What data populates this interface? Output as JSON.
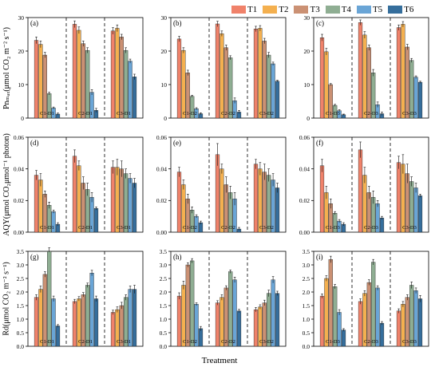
{
  "legend": {
    "labels": [
      "T1",
      "T2",
      "T3",
      "T4",
      "T5",
      "T6"
    ],
    "colors": [
      "#f0826a",
      "#f4b04f",
      "#cb9174",
      "#8fae93",
      "#6aa5d6",
      "#356e9c"
    ]
  },
  "row_labels": [
    "Pnₘₐₓ(μmol CO₂ m⁻² s⁻¹)",
    "AQY(μmol CO₂μmol⁻¹ photon)",
    "Rd(μmol CO₂ m⁻² s⁻¹)"
  ],
  "x_title": "Treatment",
  "chart_data": [
    {
      "type": "bar",
      "panel": "(a)",
      "categories": [
        "C1-D1",
        "C2-D1",
        "C3-D1"
      ],
      "ylim": [
        0,
        30
      ],
      "yticks": [
        0,
        10,
        20,
        30
      ],
      "series": [
        {
          "name": "T1",
          "values": [
            23.2,
            28.0,
            26.0
          ],
          "errors": [
            1.0,
            1.0,
            1.0
          ]
        },
        {
          "name": "T2",
          "values": [
            22.0,
            26.2,
            26.8
          ],
          "errors": [
            1.0,
            1.0,
            1.0
          ]
        },
        {
          "name": "T3",
          "values": [
            18.8,
            22.2,
            24.2
          ],
          "errors": [
            0.8,
            0.8,
            0.8
          ]
        },
        {
          "name": "T4",
          "values": [
            7.3,
            20.2,
            20.2
          ],
          "errors": [
            0.4,
            0.8,
            0.8
          ]
        },
        {
          "name": "T5",
          "values": [
            3.0,
            7.7,
            17.0
          ],
          "errors": [
            0.3,
            0.8,
            0.6
          ]
        },
        {
          "name": "T6",
          "values": [
            1.2,
            2.3,
            12.3
          ],
          "errors": [
            0.3,
            0.6,
            0.8
          ]
        }
      ]
    },
    {
      "type": "bar",
      "panel": "(b)",
      "categories": [
        "C1-D2",
        "C2-D2",
        "C3-D2"
      ],
      "ylim": [
        0,
        30
      ],
      "yticks": [
        0,
        10,
        20,
        30
      ],
      "series": [
        {
          "name": "T1",
          "values": [
            23.6,
            28.1,
            26.6
          ],
          "errors": [
            0.8,
            0.8,
            0.8
          ]
        },
        {
          "name": "T2",
          "values": [
            20.2,
            25.2,
            26.8
          ],
          "errors": [
            0.8,
            0.8,
            0.8
          ]
        },
        {
          "name": "T3",
          "values": [
            13.5,
            21.0,
            23.0
          ],
          "errors": [
            0.8,
            0.8,
            0.8
          ]
        },
        {
          "name": "T4",
          "values": [
            6.5,
            18.0,
            18.8
          ],
          "errors": [
            0.3,
            0.6,
            0.8
          ]
        },
        {
          "name": "T5",
          "values": [
            2.8,
            5.2,
            16.2
          ],
          "errors": [
            0.3,
            0.8,
            0.5
          ]
        },
        {
          "name": "T6",
          "values": [
            1.3,
            1.8,
            11.0
          ],
          "errors": [
            0.3,
            0.5,
            0.3
          ]
        }
      ]
    },
    {
      "type": "bar",
      "panel": "(c)",
      "categories": [
        "C1-D3",
        "C2-D3",
        "C3-D3"
      ],
      "ylim": [
        0,
        30
      ],
      "yticks": [
        0,
        10,
        20,
        30
      ],
      "series": [
        {
          "name": "T1",
          "values": [
            24.0,
            28.5,
            27.0
          ],
          "errors": [
            1.0,
            0.8,
            0.8
          ]
        },
        {
          "name": "T2",
          "values": [
            19.8,
            24.8,
            28.0
          ],
          "errors": [
            1.0,
            1.0,
            0.8
          ]
        },
        {
          "name": "T3",
          "values": [
            10.0,
            21.0,
            21.2
          ],
          "errors": [
            0.3,
            0.8,
            0.8
          ]
        },
        {
          "name": "T4",
          "values": [
            3.8,
            13.5,
            17.2
          ],
          "errors": [
            0.3,
            1.0,
            0.6
          ]
        },
        {
          "name": "T5",
          "values": [
            2.2,
            4.0,
            12.2
          ],
          "errors": [
            0.3,
            0.8,
            0.4
          ]
        },
        {
          "name": "T6",
          "values": [
            1.0,
            1.3,
            10.7
          ],
          "errors": [
            0.2,
            0.5,
            0.3
          ]
        }
      ]
    },
    {
      "type": "bar",
      "panel": "(d)",
      "categories": [
        "C1-D1",
        "C2-D1",
        "C3-D1"
      ],
      "ylim": [
        0,
        0.06
      ],
      "yticks": [
        0.0,
        0.02,
        0.04,
        0.06
      ],
      "series": [
        {
          "name": "T1",
          "values": [
            0.036,
            0.048,
            0.041
          ],
          "errors": [
            0.003,
            0.004,
            0.004
          ]
        },
        {
          "name": "T2",
          "values": [
            0.033,
            0.042,
            0.041
          ],
          "errors": [
            0.004,
            0.003,
            0.005
          ]
        },
        {
          "name": "T3",
          "values": [
            0.024,
            0.031,
            0.04
          ],
          "errors": [
            0.002,
            0.004,
            0.005
          ]
        },
        {
          "name": "T4",
          "values": [
            0.017,
            0.027,
            0.037
          ],
          "errors": [
            0.002,
            0.004,
            0.003
          ]
        },
        {
          "name": "T5",
          "values": [
            0.013,
            0.022,
            0.034
          ],
          "errors": [
            0.001,
            0.003,
            0.003
          ]
        },
        {
          "name": "T6",
          "values": [
            0.005,
            0.015,
            0.031
          ],
          "errors": [
            0.001,
            0.001,
            0.003
          ]
        }
      ]
    },
    {
      "type": "bar",
      "panel": "(e)",
      "categories": [
        "C1-D2",
        "C2-D2",
        "C3-D2"
      ],
      "ylim": [
        0,
        0.06
      ],
      "yticks": [
        0.0,
        0.02,
        0.04,
        0.06
      ],
      "series": [
        {
          "name": "T1",
          "values": [
            0.038,
            0.049,
            0.043
          ],
          "errors": [
            0.003,
            0.007,
            0.003
          ]
        },
        {
          "name": "T2",
          "values": [
            0.03,
            0.04,
            0.04
          ],
          "errors": [
            0.003,
            0.003,
            0.004
          ]
        },
        {
          "name": "T3",
          "values": [
            0.021,
            0.03,
            0.038
          ],
          "errors": [
            0.003,
            0.005,
            0.005
          ]
        },
        {
          "name": "T4",
          "values": [
            0.014,
            0.025,
            0.036
          ],
          "errors": [
            0.002,
            0.004,
            0.004
          ]
        },
        {
          "name": "T5",
          "values": [
            0.01,
            0.021,
            0.033
          ],
          "errors": [
            0.001,
            0.004,
            0.004
          ]
        },
        {
          "name": "T6",
          "values": [
            0.006,
            0.002,
            0.028
          ],
          "errors": [
            0.001,
            0.001,
            0.003
          ]
        }
      ]
    },
    {
      "type": "bar",
      "panel": "(f)",
      "categories": [
        "C1-D3",
        "C2-D3",
        "C3-D3"
      ],
      "ylim": [
        0,
        0.06
      ],
      "yticks": [
        0.0,
        0.02,
        0.04,
        0.06
      ],
      "series": [
        {
          "name": "T1",
          "values": [
            0.042,
            0.052,
            0.044
          ],
          "errors": [
            0.004,
            0.005,
            0.004
          ]
        },
        {
          "name": "T2",
          "values": [
            0.025,
            0.036,
            0.043
          ],
          "errors": [
            0.004,
            0.005,
            0.006
          ]
        },
        {
          "name": "T3",
          "values": [
            0.018,
            0.025,
            0.037
          ],
          "errors": [
            0.003,
            0.004,
            0.006
          ]
        },
        {
          "name": "T4",
          "values": [
            0.012,
            0.022,
            0.032
          ],
          "errors": [
            0.001,
            0.004,
            0.003
          ]
        },
        {
          "name": "T5",
          "values": [
            0.007,
            0.018,
            0.028
          ],
          "errors": [
            0.001,
            0.002,
            0.003
          ]
        },
        {
          "name": "T6",
          "values": [
            0.005,
            0.009,
            0.023
          ],
          "errors": [
            0.001,
            0.001,
            0.001
          ]
        }
      ]
    },
    {
      "type": "bar",
      "panel": "(g)",
      "categories": [
        "C1-D1",
        "C2-D1",
        "C3-D1"
      ],
      "ylim": [
        0,
        3.5
      ],
      "yticks": [
        0.0,
        0.5,
        1.0,
        1.5,
        2.0,
        2.5,
        3.0,
        3.5
      ],
      "series": [
        {
          "name": "T1",
          "values": [
            1.8,
            1.65,
            1.25
          ],
          "errors": [
            0.1,
            0.08,
            0.08
          ]
        },
        {
          "name": "T2",
          "values": [
            2.1,
            1.75,
            1.35
          ],
          "errors": [
            0.12,
            0.08,
            0.1
          ]
        },
        {
          "name": "T3",
          "values": [
            2.65,
            1.9,
            1.5
          ],
          "errors": [
            0.1,
            0.08,
            0.12
          ]
        },
        {
          "name": "T4",
          "values": [
            3.55,
            2.25,
            1.8
          ],
          "errors": [
            0.08,
            0.08,
            0.1
          ]
        },
        {
          "name": "T5",
          "values": [
            1.75,
            2.7,
            2.1
          ],
          "errors": [
            0.1,
            0.1,
            0.12
          ]
        },
        {
          "name": "T6",
          "values": [
            0.75,
            1.75,
            2.1
          ],
          "errors": [
            0.05,
            0.1,
            0.15
          ]
        }
      ]
    },
    {
      "type": "bar",
      "panel": "(h)",
      "categories": [
        "C1-D2",
        "C2-D2",
        "C3-D2"
      ],
      "ylim": [
        0,
        3.5
      ],
      "yticks": [
        0.0,
        0.5,
        1.0,
        1.5,
        2.0,
        2.5,
        3.0,
        3.5
      ],
      "series": [
        {
          "name": "T1",
          "values": [
            1.85,
            1.6,
            1.35
          ],
          "errors": [
            0.12,
            0.08,
            0.08
          ]
        },
        {
          "name": "T2",
          "values": [
            2.25,
            1.8,
            1.45
          ],
          "errors": [
            0.15,
            0.1,
            0.08
          ]
        },
        {
          "name": "T3",
          "values": [
            3.0,
            2.15,
            1.6
          ],
          "errors": [
            0.08,
            0.08,
            0.1
          ]
        },
        {
          "name": "T4",
          "values": [
            3.15,
            2.75,
            1.95
          ],
          "errors": [
            0.08,
            0.06,
            0.12
          ]
        },
        {
          "name": "T5",
          "values": [
            1.55,
            2.45,
            2.45
          ],
          "errors": [
            0.05,
            0.1,
            0.12
          ]
        },
        {
          "name": "T6",
          "values": [
            0.65,
            1.3,
            1.95
          ],
          "errors": [
            0.08,
            0.06,
            0.08
          ]
        }
      ]
    },
    {
      "type": "bar",
      "panel": "(i)",
      "categories": [
        "C1-D3",
        "C2-D3",
        "C3-D3"
      ],
      "ylim": [
        0,
        3.5
      ],
      "yticks": [
        0.0,
        0.5,
        1.0,
        1.5,
        2.0,
        2.5,
        3.0,
        3.5
      ],
      "series": [
        {
          "name": "T1",
          "values": [
            1.85,
            1.65,
            1.3
          ],
          "errors": [
            0.08,
            0.1,
            0.08
          ]
        },
        {
          "name": "T2",
          "values": [
            2.5,
            1.95,
            1.55
          ],
          "errors": [
            0.1,
            0.1,
            0.1
          ]
        },
        {
          "name": "T3",
          "values": [
            3.2,
            2.35,
            1.8
          ],
          "errors": [
            0.12,
            0.1,
            0.1
          ]
        },
        {
          "name": "T4",
          "values": [
            2.2,
            3.1,
            2.25
          ],
          "errors": [
            0.08,
            0.1,
            0.12
          ]
        },
        {
          "name": "T5",
          "values": [
            1.25,
            2.15,
            2.05
          ],
          "errors": [
            0.1,
            0.08,
            0.1
          ]
        },
        {
          "name": "T6",
          "values": [
            0.6,
            0.85,
            1.75
          ],
          "errors": [
            0.05,
            0.06,
            0.12
          ]
        }
      ]
    }
  ]
}
